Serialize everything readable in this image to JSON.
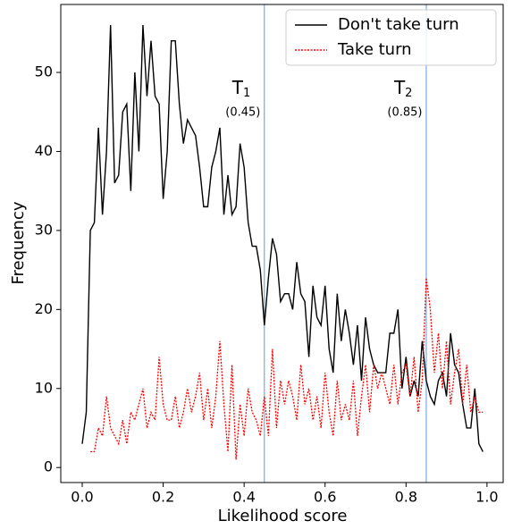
{
  "chart_data": {
    "type": "line",
    "xlabel": "Likelihood score",
    "ylabel": "Frequency",
    "x": [
      0,
      0.01,
      0.02,
      0.03,
      0.04,
      0.05,
      0.06,
      0.07,
      0.08,
      0.09,
      0.1,
      0.11,
      0.12,
      0.13,
      0.14,
      0.15,
      0.16,
      0.17,
      0.18,
      0.19,
      0.2,
      0.21,
      0.22,
      0.23,
      0.24,
      0.25,
      0.26,
      0.27,
      0.28,
      0.29,
      0.3,
      0.31,
      0.32,
      0.33,
      0.34,
      0.35,
      0.36,
      0.37,
      0.38,
      0.39,
      0.4,
      0.41,
      0.42,
      0.43,
      0.44,
      0.45,
      0.46,
      0.47,
      0.48,
      0.49,
      0.5,
      0.51,
      0.52,
      0.53,
      0.54,
      0.55,
      0.56,
      0.57,
      0.58,
      0.59,
      0.6,
      0.61,
      0.62,
      0.63,
      0.64,
      0.65,
      0.66,
      0.67,
      0.68,
      0.69,
      0.7,
      0.71,
      0.72,
      0.73,
      0.74,
      0.75,
      0.76,
      0.77,
      0.78,
      0.79,
      0.8,
      0.81,
      0.82,
      0.83,
      0.84,
      0.85,
      0.86,
      0.87,
      0.88,
      0.89,
      0.9,
      0.91,
      0.92,
      0.93,
      0.94,
      0.95,
      0.96,
      0.97,
      0.98,
      0.99
    ],
    "series": [
      {
        "name": "Don't take turn",
        "color": "#000000",
        "dash": "solid",
        "values": [
          3,
          7,
          30,
          31,
          43,
          32,
          40,
          56,
          36,
          37,
          45,
          46,
          35,
          50,
          40,
          56,
          47,
          54,
          47,
          46,
          34,
          40,
          54,
          54,
          46,
          41,
          44,
          43,
          42,
          38,
          33,
          33,
          38,
          40,
          43,
          32,
          37,
          32,
          33,
          41,
          38,
          31,
          28,
          28,
          25,
          18,
          24,
          29,
          27,
          21,
          22,
          22,
          20,
          26,
          22,
          21,
          14,
          23,
          19,
          18,
          23,
          15,
          12,
          22,
          16,
          20,
          17,
          13,
          18,
          11,
          19,
          15,
          13,
          12,
          12,
          12,
          17,
          17,
          20,
          10,
          14,
          9,
          11,
          9,
          16,
          11,
          9,
          8,
          11,
          12,
          9,
          17,
          13,
          12,
          8,
          5,
          5,
          10,
          3,
          2
        ]
      },
      {
        "name": "Take turn",
        "color": "#ff0000",
        "dash": "dotted",
        "values": [
          null,
          null,
          2,
          2,
          5,
          4,
          9,
          5,
          4,
          3,
          6,
          3,
          7,
          6,
          8,
          10,
          5,
          7,
          6,
          14,
          8,
          6,
          6,
          9,
          5,
          7,
          10,
          7,
          9,
          12,
          6,
          10,
          5,
          9,
          16,
          8,
          2,
          13,
          1,
          8,
          4,
          10,
          7,
          6,
          4,
          9,
          4,
          15,
          5,
          11,
          8,
          11,
          9,
          6,
          13,
          8,
          10,
          6,
          9,
          5,
          12,
          7,
          4,
          11,
          6,
          8,
          6,
          11,
          4,
          9,
          13,
          7,
          13,
          10,
          12,
          10,
          8,
          13,
          8,
          12,
          13,
          9,
          14,
          7,
          11,
          24,
          20,
          12,
          17,
          10,
          16,
          8,
          12,
          15,
          8,
          13,
          7,
          9,
          7,
          7
        ]
      }
    ],
    "thresholds": [
      {
        "value": 0.45,
        "name": "T",
        "subscript": "1",
        "value_label": "(0.45)"
      },
      {
        "value": 0.85,
        "name": "T",
        "subscript": "2",
        "value_label": "(0.85)"
      }
    ],
    "threshold_color": "#5b9bd5",
    "xlim": [
      -0.053,
      1.04
    ],
    "ylim": [
      -1.9,
      58.6
    ],
    "xticks": [
      {
        "value": 0,
        "label": "0.0"
      },
      0.2,
      0.4,
      0.6,
      0.8,
      {
        "value": 1,
        "label": "1.0"
      }
    ],
    "yticks": [
      0,
      10,
      20,
      30,
      40,
      50
    ],
    "legend": "upper right",
    "grid": false
  }
}
